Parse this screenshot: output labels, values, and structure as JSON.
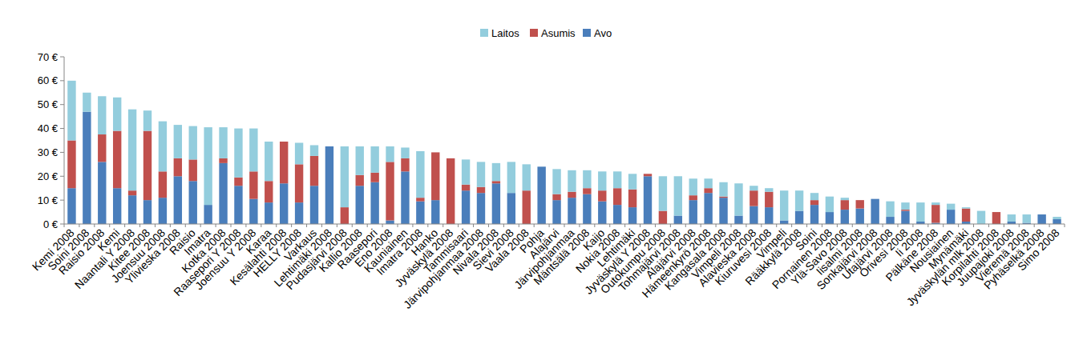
{
  "chart_data": {
    "type": "bar",
    "stacked": true,
    "grid": false,
    "legend": "top",
    "categories": [
      "Kemi 2008",
      "Soini 2008",
      "Raisio 2008",
      "Kemi",
      "Naantali Y 2008",
      "Kitee 2008",
      "Joensuu 2008",
      "Ylivieska 2008",
      "Raisio",
      "Imatra",
      "Kotka 2008",
      "Raasepori Y 2008",
      "Joensuu Y 2008",
      "Karaa",
      "Kesälahti 2008",
      "HELLY 2008",
      "Varkaus",
      "Lehtimäki 2008",
      "Pudasjärvi 2008",
      "Kallio 2008",
      "Raasepori",
      "Eno 2008",
      "Kauniainen",
      "Imatra 2008",
      "Hanko",
      "Jyväskylä 2008",
      "Tammisaari",
      "Järvipohjanmaa 2008",
      "Nivala 2008",
      "Sievi 2008",
      "Vaala 2008",
      "Pohja",
      "Alajärvi",
      "Järvipohjanmaa",
      "Mäntsälä 2008",
      "Kaijo",
      "Nokia 2008",
      "Lehtimäki",
      "Jyväskylä Y 2008",
      "Outokumpu 2008",
      "Tohmajärvi 2008",
      "Alajärvi 2008",
      "Hämeenkyrö 2008",
      "Kangasala 2008",
      "Vimpeli 2008",
      "Alavieska 2008",
      "Kiuruvesi 2008",
      "Vimpeli",
      "Rääkkylä 2008",
      "Soini",
      "Pornainen 2008",
      "Ylä-Savo 2008",
      "Iisalmi 2008",
      "Sonkajärvi 2008",
      "Utajärvi 2008",
      "Orivesi 2008",
      "Ii 2008",
      "Pälkäne 2008",
      "Nousiainen",
      "Mynämäki",
      "Jyväskylän mlk 2008",
      "Korpilahti 2008",
      "Juupajoki 2008",
      "Vieremä 2008",
      "Pyhäselkä 2008",
      "Simo 2008"
    ],
    "series": [
      {
        "name": "Avo",
        "color": "#4a7ebb",
        "values": [
          15,
          47,
          26,
          15,
          12,
          10,
          11,
          20,
          18,
          8,
          25.5,
          16,
          10.5,
          9,
          17,
          9,
          16,
          32.5,
          0,
          16,
          17.5,
          1.5,
          22,
          9.5,
          10,
          0,
          14,
          13,
          17,
          13,
          0,
          24,
          10,
          11,
          12.5,
          9.5,
          8,
          7,
          20,
          0,
          3.5,
          10,
          13,
          11,
          3.5,
          7.5,
          7,
          1.5,
          5.5,
          8,
          5,
          6,
          6.5,
          10.5,
          3,
          5.5,
          1,
          0.5,
          6,
          1,
          0,
          0,
          1,
          0.5,
          4,
          2
        ]
      },
      {
        "name": "Asumis",
        "color": "#c0504d",
        "values": [
          20,
          0,
          11.5,
          24,
          2,
          29,
          11,
          7.5,
          9,
          0,
          2,
          3.5,
          11.5,
          9,
          17.5,
          16,
          12.5,
          0,
          7,
          4.5,
          4,
          24.5,
          5.5,
          1.5,
          20,
          27.5,
          2.5,
          2.5,
          1,
          0,
          14,
          0,
          2.5,
          2.5,
          2.5,
          4.5,
          7,
          7.5,
          1,
          5.5,
          0,
          2,
          2,
          0.5,
          0,
          6.5,
          6.5,
          0,
          0,
          2,
          0,
          4,
          3.5,
          0,
          0,
          0.5,
          0,
          7.5,
          0,
          5.5,
          0,
          5,
          0,
          0,
          0,
          0
        ]
      },
      {
        "name": "Laitos",
        "color": "#93cddd",
        "values": [
          25,
          8,
          16,
          14,
          34,
          8.5,
          21,
          14,
          14,
          32.5,
          13,
          20.5,
          18,
          16.5,
          0,
          9,
          4.5,
          0,
          25.5,
          12,
          11,
          6.5,
          4.5,
          19.5,
          0,
          0,
          10.5,
          10.5,
          7.5,
          13,
          11,
          0,
          10.5,
          9,
          7.5,
          8,
          7,
          6.5,
          0,
          14.5,
          16.5,
          7,
          4,
          6,
          13.5,
          2,
          1.5,
          12.5,
          8.5,
          3,
          6.5,
          1,
          0,
          0,
          6.5,
          3,
          8,
          1,
          2.5,
          0.5,
          5.5,
          0,
          3,
          3.5,
          0,
          1
        ]
      }
    ],
    "ylim": [
      0,
      70
    ],
    "yticks": [
      {
        "value": 0,
        "label": "0 €"
      },
      {
        "value": 10,
        "label": "10 €"
      },
      {
        "value": 20,
        "label": "20 €"
      },
      {
        "value": 30,
        "label": "30 €"
      },
      {
        "value": 40,
        "label": "40 €"
      },
      {
        "value": 50,
        "label": "50 €"
      },
      {
        "value": 60,
        "label": "60 €"
      },
      {
        "value": 70,
        "label": "70 €"
      }
    ]
  }
}
